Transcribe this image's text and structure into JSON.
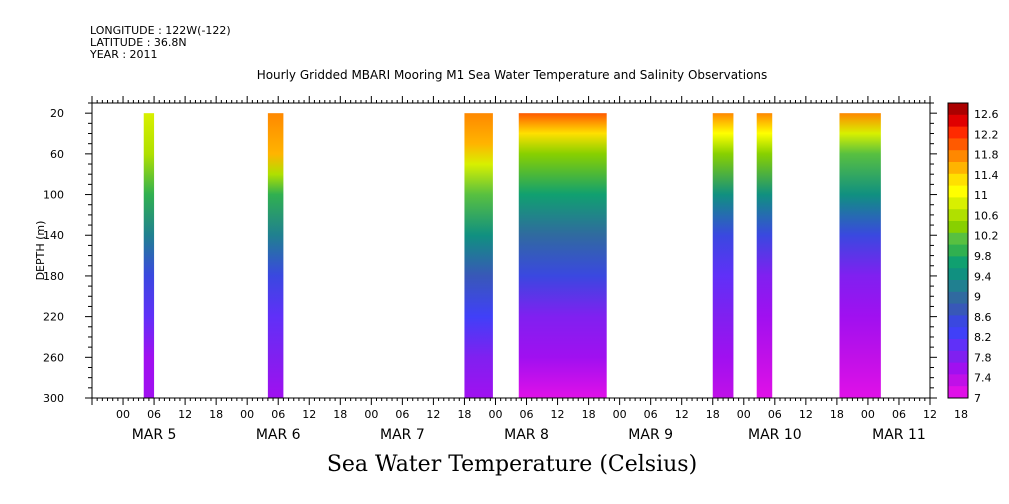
{
  "header": {
    "longitude": "LONGITUDE : 122W(-122)",
    "latitude": "LATITUDE : 36.8N",
    "year": "YEAR : 2011"
  },
  "chart_data": {
    "type": "heatmap",
    "title": "Hourly Gridded MBARI Mooring M1 Sea Water Temperature and Salinity Observations",
    "bottom_title": "Sea Water Temperature (Celsius)",
    "ylabel": "DEPTH (m)",
    "ylim": [
      300,
      10
    ],
    "y_ticks": [
      20,
      60,
      100,
      140,
      180,
      220,
      260,
      300
    ],
    "x_range_hours": [
      -6,
      156
    ],
    "x_hour_labels": [
      "00",
      "06",
      "12",
      "18",
      "00",
      "06",
      "12",
      "18",
      "00",
      "06",
      "12",
      "18",
      "00",
      "06",
      "12",
      "18",
      "00",
      "06",
      "12",
      "18",
      "00",
      "06",
      "12",
      "18",
      "00",
      "06",
      "12",
      "18"
    ],
    "x_day_labels": [
      "MAR  5",
      "MAR  6",
      "MAR  7",
      "MAR  8",
      "MAR  9",
      "MAR 10",
      "MAR 11"
    ],
    "colorbar": {
      "levels": [
        12.6,
        12.2,
        11.8,
        11.4,
        11,
        10.6,
        10.2,
        9.8,
        9.4,
        9,
        8.6,
        8.2,
        7.8,
        7.4,
        7
      ],
      "colors": [
        "#ab0000",
        "#e00000",
        "#ff2a00",
        "#ff5a00",
        "#ff8800",
        "#ffb400",
        "#ffe000",
        "#ffff00",
        "#d8f000",
        "#b0e000",
        "#88d000",
        "#58c040",
        "#30b050",
        "#10a070",
        "#109080",
        "#208090",
        "#306aa0",
        "#3858b8",
        "#3a48e0",
        "#4040f8",
        "#6030f8",
        "#8020f0",
        "#a010f0",
        "#c010e8",
        "#e010e8"
      ]
    },
    "segments": [
      {
        "start_hour": 4.0,
        "end_hour": 6.0,
        "profile": [
          [
            20,
            10.9
          ],
          [
            60,
            10.5
          ],
          [
            100,
            9.8
          ],
          [
            140,
            9.2
          ],
          [
            180,
            8.4
          ],
          [
            220,
            8.0
          ],
          [
            260,
            7.6
          ],
          [
            300,
            7.5
          ]
        ]
      },
      {
        "start_hour": 28.0,
        "end_hour": 31.0,
        "profile": [
          [
            20,
            11.7
          ],
          [
            60,
            11.6
          ],
          [
            80,
            10.6
          ],
          [
            100,
            9.9
          ],
          [
            140,
            9.3
          ],
          [
            180,
            8.6
          ],
          [
            220,
            8.1
          ],
          [
            260,
            7.7
          ],
          [
            300,
            7.6
          ]
        ]
      },
      {
        "start_hour": 66.0,
        "end_hour": 71.5,
        "profile": [
          [
            20,
            11.8
          ],
          [
            50,
            11.6
          ],
          [
            70,
            10.9
          ],
          [
            100,
            10.2
          ],
          [
            140,
            9.5
          ],
          [
            180,
            8.7
          ],
          [
            220,
            8.3
          ],
          [
            260,
            7.8
          ],
          [
            300,
            7.6
          ]
        ]
      },
      {
        "start_hour": 76.5,
        "end_hour": 93.5,
        "profile": [
          [
            20,
            12.0
          ],
          [
            40,
            11.2
          ],
          [
            60,
            10.4
          ],
          [
            100,
            9.6
          ],
          [
            140,
            8.9
          ],
          [
            180,
            8.4
          ],
          [
            220,
            7.9
          ],
          [
            260,
            7.6
          ],
          [
            300,
            7.2
          ]
        ]
      },
      {
        "start_hour": 114.0,
        "end_hour": 118.0,
        "profile": [
          [
            20,
            11.8
          ],
          [
            40,
            11.0
          ],
          [
            60,
            10.3
          ],
          [
            100,
            9.4
          ],
          [
            140,
            8.5
          ],
          [
            180,
            8.0
          ],
          [
            220,
            7.7
          ],
          [
            260,
            7.5
          ],
          [
            300,
            7.3
          ]
        ]
      },
      {
        "start_hour": 122.5,
        "end_hour": 125.5,
        "profile": [
          [
            20,
            11.8
          ],
          [
            40,
            11.0
          ],
          [
            60,
            10.3
          ],
          [
            100,
            9.4
          ],
          [
            140,
            8.4
          ],
          [
            180,
            7.9
          ],
          [
            220,
            7.6
          ],
          [
            260,
            7.4
          ],
          [
            300,
            7.2
          ]
        ]
      },
      {
        "start_hour": 138.5,
        "end_hour": 146.5,
        "profile": [
          [
            20,
            11.8
          ],
          [
            40,
            10.8
          ],
          [
            60,
            10.2
          ],
          [
            100,
            9.4
          ],
          [
            140,
            8.4
          ],
          [
            180,
            7.8
          ],
          [
            220,
            7.5
          ],
          [
            260,
            7.3
          ],
          [
            300,
            7.1
          ]
        ]
      }
    ]
  }
}
